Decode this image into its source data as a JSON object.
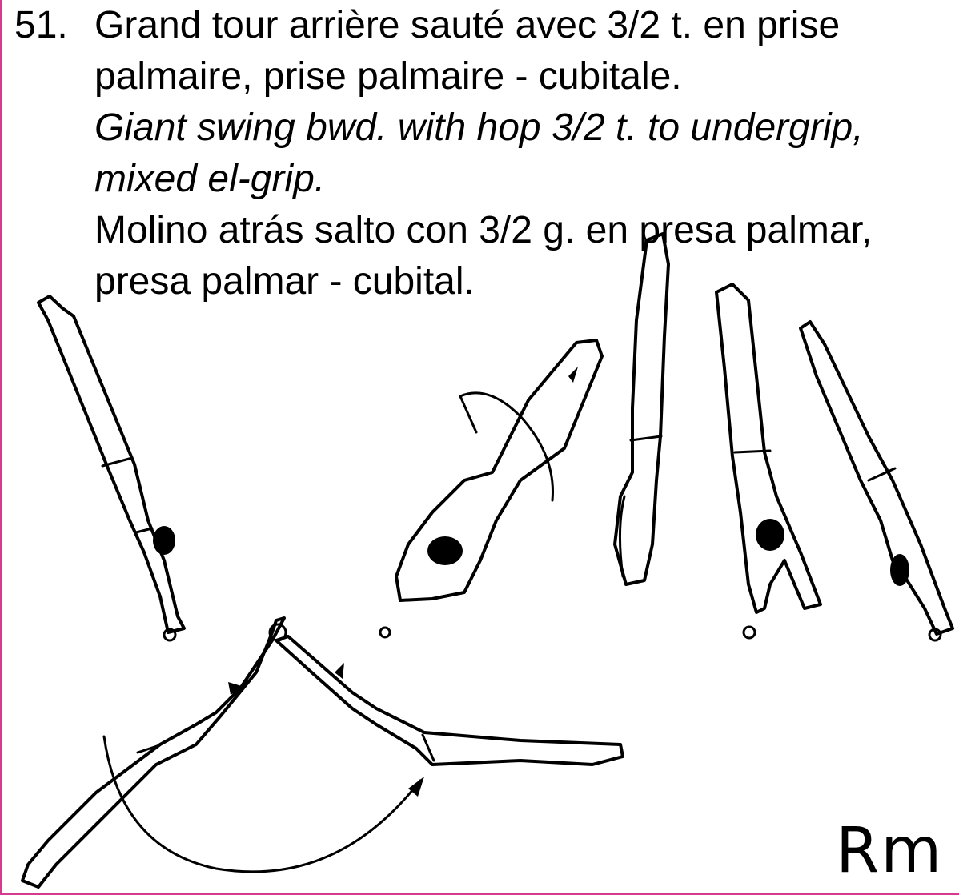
{
  "element": {
    "number": "51.",
    "french": [
      "Grand tour arrière sauté avec 3/2 t. en prise",
      "palmaire, prise palmaire - cubitale."
    ],
    "english": [
      "Giant swing bwd. with hop 3/2 t. to undergrip,",
      "mixed el-grip."
    ],
    "spanish": [
      "Molino atrás salto con 3/2 g. en presa palmar,",
      "presa palmar - cubital."
    ]
  },
  "signature": "Rm",
  "colors": {
    "frame": "#d63a8c",
    "ink": "#000000"
  }
}
